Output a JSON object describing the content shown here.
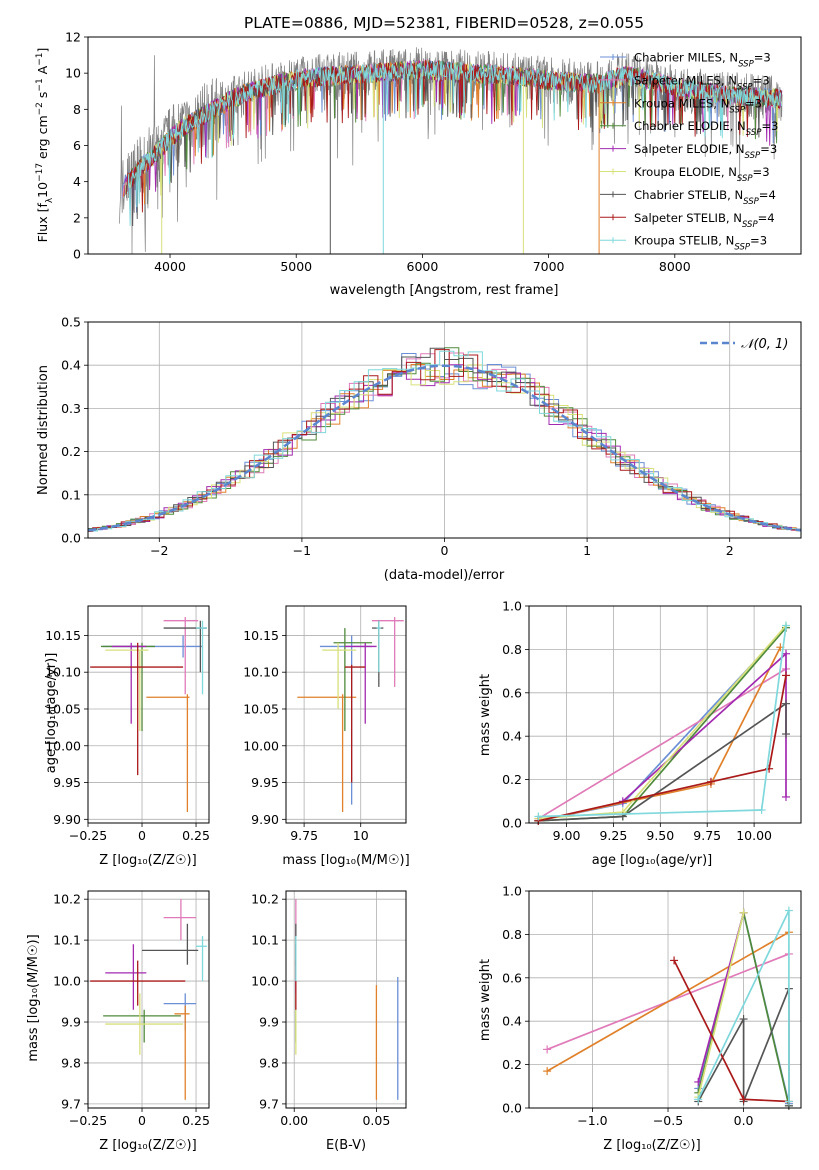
{
  "colors": {
    "chabrier_miles": "#6b8fd6",
    "salpeter_miles": "#e07ab8",
    "kroupa_miles": "#e0802a",
    "chabrier_elodie": "#4f8a3a",
    "salpeter_elodie": "#a32ab0",
    "kroupa_elodie": "#d8e07a",
    "chabrier_stelib": "#555555",
    "salpeter_stelib": "#aa1a1a",
    "kroupa_stelib": "#7fd8dc",
    "normal_curve": "#5a86d0"
  },
  "chart_data": [
    {
      "id": "spectrum",
      "type": "line",
      "title": "PLATE=0886, MJD=52381, FIBERID=0528, z=0.055",
      "xlabel": "wavelength [Angstrom, rest frame]",
      "ylabel_parts": [
        "Flux [f",
        "λ",
        "10",
        "−17",
        " erg cm",
        "−2",
        " s",
        "−1",
        " A",
        "−1",
        "]"
      ],
      "xlim": [
        3350,
        9000
      ],
      "ylim": [
        0,
        12
      ],
      "xticks": [
        4000,
        5000,
        6000,
        7000,
        8000
      ],
      "yticks": [
        0,
        2,
        4,
        6,
        8,
        10,
        12
      ],
      "legend_position": "upper-right",
      "series": [
        {
          "name": "Chabrier MILES",
          "nssp": "3",
          "color_key": "chabrier_miles"
        },
        {
          "name": "Salpeter MILES",
          "nssp": "3",
          "color_key": "salpeter_miles"
        },
        {
          "name": "Kroupa MILES",
          "nssp": "3",
          "color_key": "kroupa_miles"
        },
        {
          "name": "Chabrier ELODIE",
          "nssp": "3",
          "color_key": "chabrier_elodie"
        },
        {
          "name": "Salpeter ELODIE",
          "nssp": "3",
          "color_key": "salpeter_elodie"
        },
        {
          "name": "Kroupa ELODIE",
          "nssp": "3",
          "color_key": "kroupa_elodie"
        },
        {
          "name": "Chabrier STELIB",
          "nssp": "4",
          "color_key": "chabrier_stelib"
        },
        {
          "name": "Salpeter STELIB",
          "nssp": "4",
          "color_key": "salpeter_stelib"
        },
        {
          "name": "Kroupa STELIB",
          "nssp": "3",
          "color_key": "kroupa_stelib"
        }
      ],
      "data_envelope": {
        "x": [
          3600,
          3700,
          3800,
          3900,
          4000,
          4100,
          4200,
          4300,
          4400,
          4500,
          4600,
          4700,
          4800,
          4900,
          5000,
          5200,
          5400,
          5600,
          5800,
          6000,
          6200,
          6400,
          6600,
          6800,
          7000,
          7200,
          7400,
          7600,
          7800,
          8000,
          8200,
          8400,
          8600,
          8800
        ],
        "y": [
          3.5,
          4.2,
          5.0,
          5.6,
          6.4,
          7.0,
          7.4,
          7.8,
          8.2,
          8.6,
          8.9,
          9.1,
          9.3,
          9.5,
          9.6,
          9.8,
          9.9,
          10.0,
          10.1,
          10.2,
          10.1,
          10.0,
          9.9,
          9.8,
          9.6,
          9.5,
          9.4,
          9.9,
          9.6,
          9.2,
          9.0,
          8.8,
          8.7,
          8.6
        ]
      },
      "absorption_dips": [
        {
          "x": 3934,
          "y": 0
        },
        {
          "x": 5270,
          "y": 0
        },
        {
          "x": 5690,
          "y": 0
        },
        {
          "x": 6800,
          "y": 0
        },
        {
          "x": 7400,
          "y": 0
        }
      ]
    },
    {
      "id": "residuals",
      "type": "step",
      "xlabel": "(data-model)/error",
      "ylabel": "Normed distribution",
      "xlim": [
        -2.5,
        2.5
      ],
      "ylim": [
        0,
        0.5
      ],
      "xticks": [
        -2,
        -1,
        0,
        1,
        2
      ],
      "yticks": [
        0.0,
        0.1,
        0.2,
        0.3,
        0.4,
        0.5
      ],
      "legend": "𝒩(0, 1)",
      "legend_position": "upper-right",
      "grid": true
    },
    {
      "id": "age_vs_Z",
      "type": "errorbar",
      "xlabel": "Z [log₁₀(Z/Z☉)]",
      "ylabel": "age  [log₁₀(age/yr)]",
      "xlim": [
        -0.25,
        0.31
      ],
      "ylim": [
        9.895,
        10.19
      ],
      "xticks": [
        -0.25,
        0.0,
        0.25
      ],
      "yticks": [
        9.9,
        9.95,
        10.0,
        10.05,
        10.1,
        10.15
      ],
      "grid": true,
      "points": [
        {
          "k": "chabrier_miles",
          "x": 0.19,
          "y": 10.135,
          "xe": [
            -0.18,
            0.28
          ],
          "ye": [
            10.12,
            10.15
          ]
        },
        {
          "k": "salpeter_miles",
          "x": 0.2,
          "y": 10.17,
          "xe": [
            0.1,
            0.26
          ],
          "ye": [
            10.07,
            10.175
          ]
        },
        {
          "k": "kroupa_miles",
          "x": 0.21,
          "y": 10.066,
          "xe": [
            0.02,
            0.22
          ],
          "ye": [
            9.91,
            10.07
          ]
        },
        {
          "k": "chabrier_elodie",
          "x": -0.0,
          "y": 10.135,
          "xe": [
            -0.19,
            0.06
          ],
          "ye": [
            10.02,
            10.14
          ]
        },
        {
          "k": "salpeter_elodie",
          "x": -0.05,
          "y": 10.135,
          "xe": [
            -0.14,
            0.02
          ],
          "ye": [
            10.03,
            10.14
          ]
        },
        {
          "k": "kroupa_elodie",
          "x": -0.01,
          "y": 10.13,
          "xe": [
            -0.17,
            0.03
          ],
          "ye": [
            10.02,
            10.13
          ]
        },
        {
          "k": "chabrier_stelib",
          "x": 0.27,
          "y": 10.16,
          "xe": [
            0.1,
            0.3
          ],
          "ye": [
            10.1,
            10.17
          ]
        },
        {
          "k": "salpeter_stelib",
          "x": -0.02,
          "y": 10.107,
          "xe": [
            -0.24,
            0.19
          ],
          "ye": [
            9.96,
            10.14
          ]
        },
        {
          "k": "kroupa_stelib",
          "x": 0.28,
          "y": 10.16,
          "xe": [
            0.25,
            0.3
          ],
          "ye": [
            10.07,
            10.17
          ]
        }
      ]
    },
    {
      "id": "age_vs_mass",
      "type": "errorbar",
      "xlabel": "mass [log₁₀(M/M☉)]",
      "ylabel": "",
      "xlim": [
        9.67,
        10.2
      ],
      "ylim": [
        9.895,
        10.19
      ],
      "xticks": [
        9.75,
        10.0
      ],
      "yticks": [
        9.9,
        9.95,
        10.0,
        10.05,
        10.1,
        10.15
      ],
      "grid": true,
      "points": [
        {
          "k": "chabrier_miles",
          "x": 9.96,
          "y": 10.135,
          "xe": [
            9.82,
            10.05
          ],
          "ye": [
            9.92,
            10.15
          ]
        },
        {
          "k": "salpeter_miles",
          "x": 10.15,
          "y": 10.17,
          "xe": [
            10.05,
            10.19
          ],
          "ye": [
            10.08,
            10.175
          ]
        },
        {
          "k": "kroupa_miles",
          "x": 9.92,
          "y": 10.066,
          "xe": [
            9.72,
            9.98
          ],
          "ye": [
            9.91,
            10.07
          ]
        },
        {
          "k": "chabrier_elodie",
          "x": 9.93,
          "y": 10.14,
          "xe": [
            9.88,
            10.05
          ],
          "ye": [
            10.02,
            10.16
          ]
        },
        {
          "k": "salpeter_elodie",
          "x": 10.02,
          "y": 10.135,
          "xe": [
            9.93,
            10.07
          ],
          "ye": [
            10.03,
            10.14
          ]
        },
        {
          "k": "kroupa_elodie",
          "x": 9.9,
          "y": 10.13,
          "xe": [
            9.83,
            9.98
          ],
          "ye": [
            10.05,
            10.14
          ]
        },
        {
          "k": "chabrier_stelib",
          "x": 10.08,
          "y": 10.16,
          "xe": [
            10.05,
            10.1
          ],
          "ye": [
            10.08,
            10.17
          ]
        },
        {
          "k": "salpeter_stelib",
          "x": 9.96,
          "y": 10.107,
          "xe": [
            9.93,
            10.02
          ],
          "ye": [
            9.95,
            10.11
          ]
        },
        {
          "k": "kroupa_stelib",
          "x": 10.08,
          "y": 10.16,
          "xe": [
            10.07,
            10.09
          ],
          "ye": [
            10.1,
            10.17
          ]
        }
      ]
    },
    {
      "id": "weight_vs_age",
      "type": "line",
      "xlabel": "age  [log₁₀(age/yr)]",
      "ylabel": "mass weight",
      "xlim": [
        8.8,
        10.25
      ],
      "ylim": [
        0,
        1.0
      ],
      "xticks": [
        9.0,
        9.25,
        9.5,
        9.75,
        10.0
      ],
      "xticklabels": [
        "9.00",
        "9.25",
        "9.50",
        "9.75",
        "10.00"
      ],
      "yticks": [
        0.0,
        0.2,
        0.4,
        0.6,
        0.8,
        1.0
      ],
      "grid": true,
      "series": [
        {
          "k": "chabrier_miles",
          "x": [
            8.85,
            9.3,
            10.17
          ],
          "y": [
            0.01,
            0.09,
            0.9
          ]
        },
        {
          "k": "salpeter_miles",
          "x": [
            8.85,
            10.17
          ],
          "y": [
            0.02,
            0.71
          ]
        },
        {
          "k": "kroupa_miles",
          "x": [
            8.85,
            9.77,
            10.14
          ],
          "y": [
            0.01,
            0.18,
            0.81
          ]
        },
        {
          "k": "chabrier_elodie",
          "x": [
            8.85,
            9.3,
            10.17
          ],
          "y": [
            0.01,
            0.03,
            0.9
          ]
        },
        {
          "k": "salpeter_elodie",
          "x": [
            9.3,
            10.17,
            10.17
          ],
          "y": [
            0.1,
            0.78,
            0.12
          ]
        },
        {
          "k": "kroupa_elodie",
          "x": [
            8.85,
            9.3,
            10.17
          ],
          "y": [
            0.02,
            0.05,
            0.91
          ]
        },
        {
          "k": "chabrier_stelib",
          "x": [
            8.85,
            9.3,
            10.17,
            10.17
          ],
          "y": [
            0.01,
            0.03,
            0.55,
            0.41
          ]
        },
        {
          "k": "salpeter_stelib",
          "x": [
            8.85,
            9.77,
            10.08,
            10.17
          ],
          "y": [
            0.01,
            0.19,
            0.25,
            0.68
          ]
        },
        {
          "k": "kroupa_stelib",
          "x": [
            8.85,
            10.04,
            10.17
          ],
          "y": [
            0.03,
            0.06,
            0.91
          ]
        }
      ]
    },
    {
      "id": "mass_vs_Z",
      "type": "errorbar",
      "xlabel": "Z [log₁₀(Z/Z☉)]",
      "ylabel": "mass [log₁₀(M/M☉)]",
      "xlim": [
        -0.25,
        0.31
      ],
      "ylim": [
        9.69,
        10.22
      ],
      "xticks": [
        -0.25,
        0.0,
        0.25
      ],
      "yticks": [
        9.7,
        9.8,
        9.9,
        10.0,
        10.1,
        10.2
      ],
      "grid": true,
      "points": [
        {
          "k": "chabrier_miles",
          "x": 0.2,
          "y": 9.945,
          "xe": [
            0.1,
            0.25
          ],
          "ye": [
            9.88,
            9.97
          ]
        },
        {
          "k": "salpeter_miles",
          "x": 0.18,
          "y": 10.155,
          "xe": [
            0.1,
            0.25
          ],
          "ye": [
            10.1,
            10.2
          ]
        },
        {
          "k": "kroupa_miles",
          "x": 0.2,
          "y": 9.92,
          "xe": [
            0.15,
            0.22
          ],
          "ye": [
            9.71,
            9.94
          ]
        },
        {
          "k": "chabrier_elodie",
          "x": 0.01,
          "y": 9.915,
          "xe": [
            -0.18,
            0.18
          ],
          "ye": [
            9.85,
            9.93
          ]
        },
        {
          "k": "salpeter_elodie",
          "x": -0.04,
          "y": 10.02,
          "xe": [
            -0.17,
            0.02
          ],
          "ye": [
            9.93,
            10.09
          ]
        },
        {
          "k": "kroupa_elodie",
          "x": -0.01,
          "y": 9.895,
          "xe": [
            -0.17,
            0.19
          ],
          "ye": [
            9.82,
            9.97
          ]
        },
        {
          "k": "chabrier_stelib",
          "x": 0.21,
          "y": 10.075,
          "xe": [
            0.0,
            0.26
          ],
          "ye": [
            10.04,
            10.14
          ]
        },
        {
          "k": "salpeter_stelib",
          "x": -0.02,
          "y": 10.0,
          "xe": [
            -0.24,
            0.2
          ],
          "ye": [
            9.94,
            10.05
          ]
        },
        {
          "k": "kroupa_stelib",
          "x": 0.28,
          "y": 10.085,
          "xe": [
            0.25,
            0.3
          ],
          "ye": [
            10.0,
            10.11
          ]
        }
      ]
    },
    {
      "id": "mass_vs_ebv",
      "type": "errorbar",
      "xlabel": "E(B-V)",
      "ylabel": "",
      "xlim": [
        -0.005,
        0.068
      ],
      "ylim": [
        9.69,
        10.22
      ],
      "xticks": [
        0.0,
        0.05
      ],
      "xticklabels": [
        "0.00",
        "0.05"
      ],
      "yticks": [
        9.7,
        9.8,
        9.9,
        10.0,
        10.1,
        10.2
      ],
      "grid": true,
      "points": [
        {
          "k": "chabrier_miles",
          "x": 0.063,
          "y": 9.9,
          "xe": [
            0.063,
            0.063
          ],
          "ye": [
            9.71,
            10.01
          ]
        },
        {
          "k": "salpeter_miles",
          "x": 0.001,
          "y": 10.155,
          "xe": [
            0.001,
            0.001
          ],
          "ye": [
            10.1,
            10.2
          ]
        },
        {
          "k": "kroupa_miles",
          "x": 0.05,
          "y": 9.85,
          "xe": [
            0.05,
            0.05
          ],
          "ye": [
            9.71,
            9.99
          ]
        },
        {
          "k": "chabrier_elodie",
          "x": 0.001,
          "y": 9.915,
          "xe": [
            0.001,
            0.001
          ],
          "ye": [
            9.85,
            9.93
          ]
        },
        {
          "k": "salpeter_elodie",
          "x": 0.001,
          "y": 10.02,
          "xe": [
            0.001,
            0.001
          ],
          "ye": [
            9.93,
            10.09
          ]
        },
        {
          "k": "kroupa_elodie",
          "x": 0.001,
          "y": 9.895,
          "xe": [
            0.001,
            0.001
          ],
          "ye": [
            9.82,
            9.97
          ]
        },
        {
          "k": "chabrier_stelib",
          "x": 0.001,
          "y": 10.075,
          "xe": [
            0.001,
            0.001
          ],
          "ye": [
            10.04,
            10.14
          ]
        },
        {
          "k": "salpeter_stelib",
          "x": 0.001,
          "y": 10.0,
          "xe": [
            0.001,
            0.001
          ],
          "ye": [
            9.93,
            10.05
          ]
        },
        {
          "k": "kroupa_stelib",
          "x": 0.001,
          "y": 10.085,
          "xe": [
            0.001,
            0.001
          ],
          "ye": [
            10.0,
            10.11
          ]
        }
      ]
    },
    {
      "id": "weight_vs_Z",
      "type": "line",
      "xlabel": "Z [log₁₀(Z/Z☉)]",
      "ylabel": "mass weight",
      "xlim": [
        -1.42,
        0.38
      ],
      "ylim": [
        0,
        1.0
      ],
      "xticks": [
        -1.0,
        -0.5,
        0.0
      ],
      "xticklabels": [
        "−1.0",
        "−0.5",
        "0.0"
      ],
      "yticks": [
        0.0,
        0.2,
        0.4,
        0.6,
        0.8,
        1.0
      ],
      "grid": true,
      "series": [
        {
          "k": "chabrier_miles",
          "x": [
            -0.3,
            0.0,
            0.3
          ],
          "y": [
            0.09,
            0.9,
            0.02
          ]
        },
        {
          "k": "salpeter_miles",
          "x": [
            -1.3,
            0.3
          ],
          "y": [
            0.27,
            0.71
          ]
        },
        {
          "k": "kroupa_miles",
          "x": [
            -1.3,
            0.3
          ],
          "y": [
            0.17,
            0.81
          ]
        },
        {
          "k": "chabrier_elodie",
          "x": [
            -0.3,
            0.0,
            0.3
          ],
          "y": [
            0.07,
            0.9,
            0.01
          ]
        },
        {
          "k": "salpeter_elodie",
          "x": [
            -0.3,
            0.0
          ],
          "y": [
            0.12,
            0.9
          ]
        },
        {
          "k": "kroupa_elodie",
          "x": [
            -0.3,
            0.0
          ],
          "y": [
            0.05,
            0.9
          ]
        },
        {
          "k": "chabrier_stelib",
          "x": [
            -0.3,
            0.0,
            0.0,
            0.3,
            0.3
          ],
          "y": [
            0.03,
            0.41,
            0.03,
            0.55,
            0.01
          ]
        },
        {
          "k": "salpeter_stelib",
          "x": [
            -0.46,
            0.0,
            0.3
          ],
          "y": [
            0.68,
            0.04,
            0.03
          ]
        },
        {
          "k": "kroupa_stelib",
          "x": [
            -0.3,
            0.3,
            0.3
          ],
          "y": [
            0.04,
            0.91,
            0.03
          ]
        }
      ]
    }
  ]
}
